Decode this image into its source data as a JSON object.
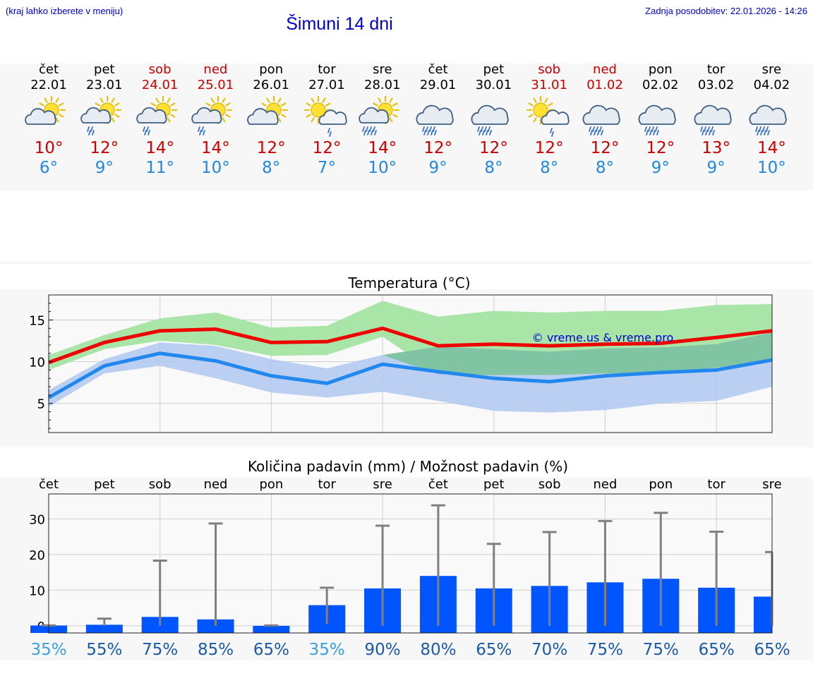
{
  "header": {
    "left_note": "(kraj lahko izberete v meniju)",
    "title": "Šimuni 14 dni",
    "updated": "Zadnja posodobitev: 22.01.2026 - 14:26"
  },
  "days": [
    {
      "name": "čet",
      "date": "22.01",
      "weekend": false,
      "icon": "partly-cloudy-sun-icon",
      "max": "10°",
      "min": "6°"
    },
    {
      "name": "pet",
      "date": "23.01",
      "weekend": false,
      "icon": "sun-cloud-rain-icon",
      "max": "12°",
      "min": "9°"
    },
    {
      "name": "sob",
      "date": "24.01",
      "weekend": true,
      "icon": "sun-cloud-rain-icon",
      "max": "14°",
      "min": "11°"
    },
    {
      "name": "ned",
      "date": "25.01",
      "weekend": true,
      "icon": "sun-cloud-rain-icon",
      "max": "14°",
      "min": "10°"
    },
    {
      "name": "pon",
      "date": "26.01",
      "weekend": false,
      "icon": "partly-cloudy-sun-icon",
      "max": "12°",
      "min": "8°"
    },
    {
      "name": "tor",
      "date": "27.01",
      "weekend": false,
      "icon": "sun-cloud-light-rain-icon",
      "max": "12°",
      "min": "7°"
    },
    {
      "name": "sre",
      "date": "28.01",
      "weekend": false,
      "icon": "sun-cloud-heavy-rain-icon",
      "max": "14°",
      "min": "10°"
    },
    {
      "name": "čet",
      "date": "29.01",
      "weekend": false,
      "icon": "cloud-rain-icon",
      "max": "12°",
      "min": "9°"
    },
    {
      "name": "pet",
      "date": "30.01",
      "weekend": false,
      "icon": "cloud-rain-icon",
      "max": "12°",
      "min": "8°"
    },
    {
      "name": "sob",
      "date": "31.01",
      "weekend": true,
      "icon": "sun-cloud-light-rain-icon",
      "max": "12°",
      "min": "8°"
    },
    {
      "name": "ned",
      "date": "01.02",
      "weekend": true,
      "icon": "cloud-rain-icon",
      "max": "12°",
      "min": "8°"
    },
    {
      "name": "pon",
      "date": "02.02",
      "weekend": false,
      "icon": "cloud-rain-icon",
      "max": "12°",
      "min": "9°"
    },
    {
      "name": "tor",
      "date": "03.02",
      "weekend": false,
      "icon": "cloud-rain-icon",
      "max": "13°",
      "min": "9°"
    },
    {
      "name": "sre",
      "date": "04.02",
      "weekend": false,
      "icon": "cloud-rain-icon",
      "max": "14°",
      "min": "10°"
    }
  ],
  "colors": {
    "max_line": "#ee0000",
    "min_line": "#2288ee",
    "max_band": "#aae5a8",
    "min_band": "#b0c8f2",
    "overlap_band": "#80c4a4",
    "precip_bar": "#0055ff",
    "error_bar": "#808080",
    "watermark": "#0000cc"
  },
  "chart_data": [
    {
      "type": "line",
      "title": "Temperatura (°C)",
      "watermark": "© vreme.us & vreme.pro",
      "ylim": [
        1.5,
        18
      ],
      "yticks": [
        5,
        10,
        15
      ],
      "x": [
        0,
        1,
        2,
        3,
        4,
        5,
        6,
        7,
        8,
        9,
        10,
        11,
        12,
        13
      ],
      "series": [
        {
          "name": "max",
          "values": [
            9.9,
            12.3,
            13.7,
            13.9,
            12.3,
            12.4,
            14.0,
            11.9,
            12.1,
            11.9,
            12.1,
            12.2,
            12.9,
            13.7
          ],
          "band_low": [
            9.0,
            11.5,
            12.5,
            12.0,
            10.7,
            10.8,
            13.0,
            8.5,
            8.4,
            8.4,
            8.6,
            8.6,
            9.3,
            10.0
          ],
          "band_high": [
            10.8,
            13.2,
            15.2,
            15.9,
            14.1,
            14.3,
            17.3,
            15.4,
            16.1,
            15.9,
            16.1,
            16.1,
            16.8,
            16.9
          ]
        },
        {
          "name": "min",
          "values": [
            5.7,
            9.5,
            11.0,
            10.1,
            8.3,
            7.4,
            9.7,
            8.8,
            8.0,
            7.6,
            8.3,
            8.7,
            9.0,
            10.2
          ],
          "band_low": [
            4.6,
            8.6,
            9.5,
            8.0,
            6.3,
            5.7,
            6.4,
            5.3,
            4.1,
            3.9,
            4.2,
            5.0,
            5.3,
            7.0
          ],
          "band_high": [
            6.6,
            10.3,
            12.3,
            11.9,
            10.3,
            9.2,
            10.8,
            11.8,
            11.5,
            11.2,
            11.6,
            11.7,
            12.1,
            13.5
          ]
        }
      ]
    },
    {
      "type": "bar",
      "title": "Količina padavin (mm) / Možnost padavin (%)",
      "categories": [
        "čet",
        "pet",
        "sob",
        "ned",
        "pon",
        "tor",
        "sre",
        "čet",
        "pet",
        "sob",
        "ned",
        "pon",
        "tor",
        "sre"
      ],
      "ylim": [
        -2,
        37
      ],
      "yticks": [
        0,
        10,
        20,
        30
      ],
      "values": [
        0.1,
        0.3,
        2.5,
        1.8,
        0.0,
        5.8,
        10.5,
        14.0,
        10.5,
        11.2,
        12.2,
        13.2,
        10.7,
        8.2
      ],
      "error_low": [
        0.0,
        0.0,
        0.0,
        0.0,
        0.0,
        0.5,
        0.0,
        0.0,
        0.0,
        0.0,
        0.0,
        0.0,
        0.0,
        0.0
      ],
      "error_high": [
        0.1,
        2.0,
        18.3,
        28.7,
        0.1,
        10.7,
        28.1,
        33.8,
        23.0,
        26.3,
        29.4,
        31.7,
        26.4,
        20.7
      ],
      "probability": [
        "35%",
        "55%",
        "75%",
        "85%",
        "65%",
        "35%",
        "90%",
        "80%",
        "65%",
        "70%",
        "75%",
        "75%",
        "65%",
        "65%"
      ],
      "probability_low": [
        true,
        false,
        false,
        false,
        false,
        true,
        false,
        false,
        false,
        false,
        false,
        false,
        false,
        false
      ]
    }
  ]
}
